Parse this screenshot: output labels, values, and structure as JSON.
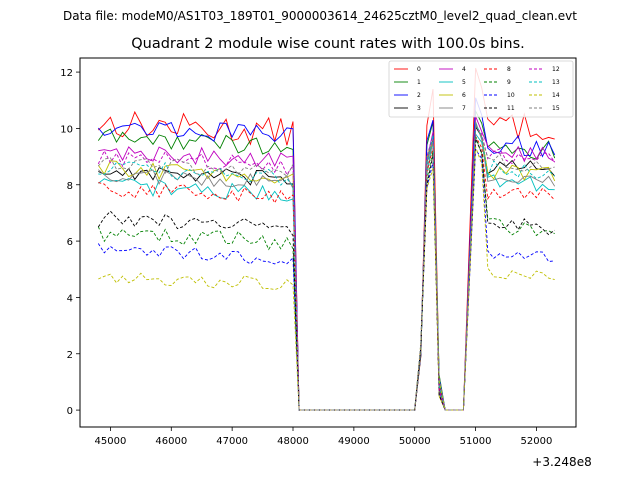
{
  "header": {
    "data_file": "Data file: modeM0/AS1T03_189T01_9000003614_24625cztM0_level2_quad_clean.evt"
  },
  "chart_data": {
    "type": "line",
    "title": "Quadrant 2 module wise count rates with 100.0s bins.",
    "xlabel": "",
    "ylabel": "",
    "x_offset_label": "+3.248e8",
    "xlim": [
      44500,
      52650
    ],
    "ylim": [
      -0.6,
      12.5
    ],
    "x_ticks": [
      45000,
      46000,
      47000,
      48000,
      49000,
      50000,
      51000,
      52000
    ],
    "x_tick_labels": [
      "45000",
      "46000",
      "47000",
      "48000",
      "49000",
      "50000",
      "51000",
      "52000"
    ],
    "y_ticks": [
      0,
      2,
      4,
      6,
      8,
      10,
      12
    ],
    "y_tick_labels": [
      "0",
      "2",
      "4",
      "6",
      "8",
      "10",
      "12"
    ],
    "legend": "top-right",
    "grid": false,
    "segments": [
      {
        "x_start": 44800,
        "x_end": 48000
      },
      {
        "x_start": 48100,
        "x_end": 50000
      },
      {
        "x_start": 50100,
        "x_end": 50900
      },
      {
        "x_start": 51000,
        "x_end": 52300
      }
    ],
    "series": [
      {
        "name": "0",
        "color": "#ff0000",
        "dash": "solid",
        "level": 10.2,
        "amp": 0.5,
        "post": 10.2,
        "peak": 11.8
      },
      {
        "name": "1",
        "color": "#008000",
        "dash": "solid",
        "level": 9.7,
        "amp": 0.35,
        "post": 9.4,
        "peak": 10.5
      },
      {
        "name": "2",
        "color": "#0000ff",
        "dash": "solid",
        "level": 10.1,
        "amp": 0.35,
        "post": 9.5,
        "peak": 10.8
      },
      {
        "name": "3",
        "color": "#000000",
        "dash": "solid",
        "level": 8.5,
        "amp": 0.3,
        "post": 8.7,
        "peak": 10.0
      },
      {
        "name": "4",
        "color": "#bf00bf",
        "dash": "solid",
        "level": 9.2,
        "amp": 0.3,
        "post": 9.2,
        "peak": 10.2
      },
      {
        "name": "5",
        "color": "#00bfbf",
        "dash": "solid",
        "level": 8.0,
        "amp": 0.3,
        "post": 8.2,
        "peak": 9.8
      },
      {
        "name": "6",
        "color": "#bfbf00",
        "dash": "solid",
        "level": 8.6,
        "amp": 0.3,
        "post": 8.5,
        "peak": 10.0
      },
      {
        "name": "7",
        "color": "#808080",
        "dash": "solid",
        "level": 8.4,
        "amp": 0.3,
        "post": 8.3,
        "peak": 9.9
      },
      {
        "name": "8",
        "color": "#ff0000",
        "dash": "dashed",
        "level": 7.9,
        "amp": 0.3,
        "post": 7.8,
        "peak": 9.6
      },
      {
        "name": "9",
        "color": "#008000",
        "dash": "dashed",
        "level": 6.3,
        "amp": 0.3,
        "post": 6.6,
        "peak": 9.4
      },
      {
        "name": "10",
        "color": "#0000ff",
        "dash": "dashed",
        "level": 5.7,
        "amp": 0.25,
        "post": 5.6,
        "peak": 9.2
      },
      {
        "name": "11",
        "color": "#000000",
        "dash": "dashed",
        "level": 6.8,
        "amp": 0.3,
        "post": 6.7,
        "peak": 9.4
      },
      {
        "name": "12",
        "color": "#bf00bf",
        "dash": "dashed",
        "level": 9.0,
        "amp": 0.3,
        "post": 9.1,
        "peak": 10.1
      },
      {
        "name": "13",
        "color": "#00bfbf",
        "dash": "dashed",
        "level": 8.6,
        "amp": 0.3,
        "post": 8.6,
        "peak": 10.0
      },
      {
        "name": "14",
        "color": "#bfbf00",
        "dash": "dashed",
        "level": 4.8,
        "amp": 0.25,
        "post": 4.9,
        "peak": 9.0
      },
      {
        "name": "15",
        "color": "#808080",
        "dash": "dashed",
        "level": 8.8,
        "amp": 0.3,
        "post": 8.9,
        "peak": 10.0
      }
    ]
  }
}
